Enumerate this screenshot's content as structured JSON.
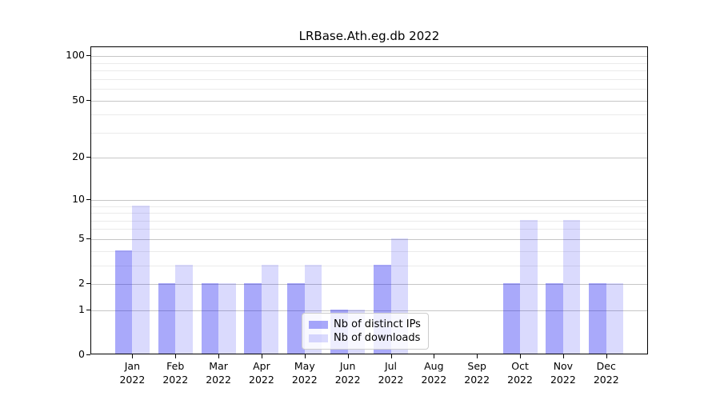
{
  "chart_data": {
    "type": "bar",
    "title": "LRBase.Ath.eg.db 2022",
    "categories": [
      "Jan",
      "Feb",
      "Mar",
      "Apr",
      "May",
      "Jun",
      "Jul",
      "Aug",
      "Sep",
      "Oct",
      "Nov",
      "Dec"
    ],
    "year_label": "2022",
    "series": [
      {
        "name": "Nb of distinct IPs",
        "color": "rgba(10,10,240,0.35)",
        "values": [
          4,
          2,
          2,
          2,
          2,
          1,
          3,
          0,
          0,
          2,
          2,
          2
        ]
      },
      {
        "name": "Nb of downloads",
        "color": "rgba(10,10,240,0.15)",
        "values": [
          9,
          3,
          2,
          3,
          3,
          1,
          5,
          0,
          0,
          7,
          7,
          2
        ]
      }
    ],
    "y_scale": "log1p",
    "y_major_ticks": [
      0,
      1,
      2,
      5,
      10,
      20,
      50,
      100
    ],
    "y_minor_gridlines": [
      3,
      4,
      6,
      7,
      8,
      9,
      30,
      40,
      60,
      70,
      80,
      90
    ],
    "ylim": [
      0,
      115
    ],
    "grid": true,
    "legend_position": "lower center-right inside plot",
    "colors": {
      "grid_major": "#c6c6c6",
      "grid_minor": "#ebebeb",
      "spine": "#000000",
      "legend_border": "#cccccc",
      "legend_background": "rgba(255,255,255,0.8)"
    }
  }
}
